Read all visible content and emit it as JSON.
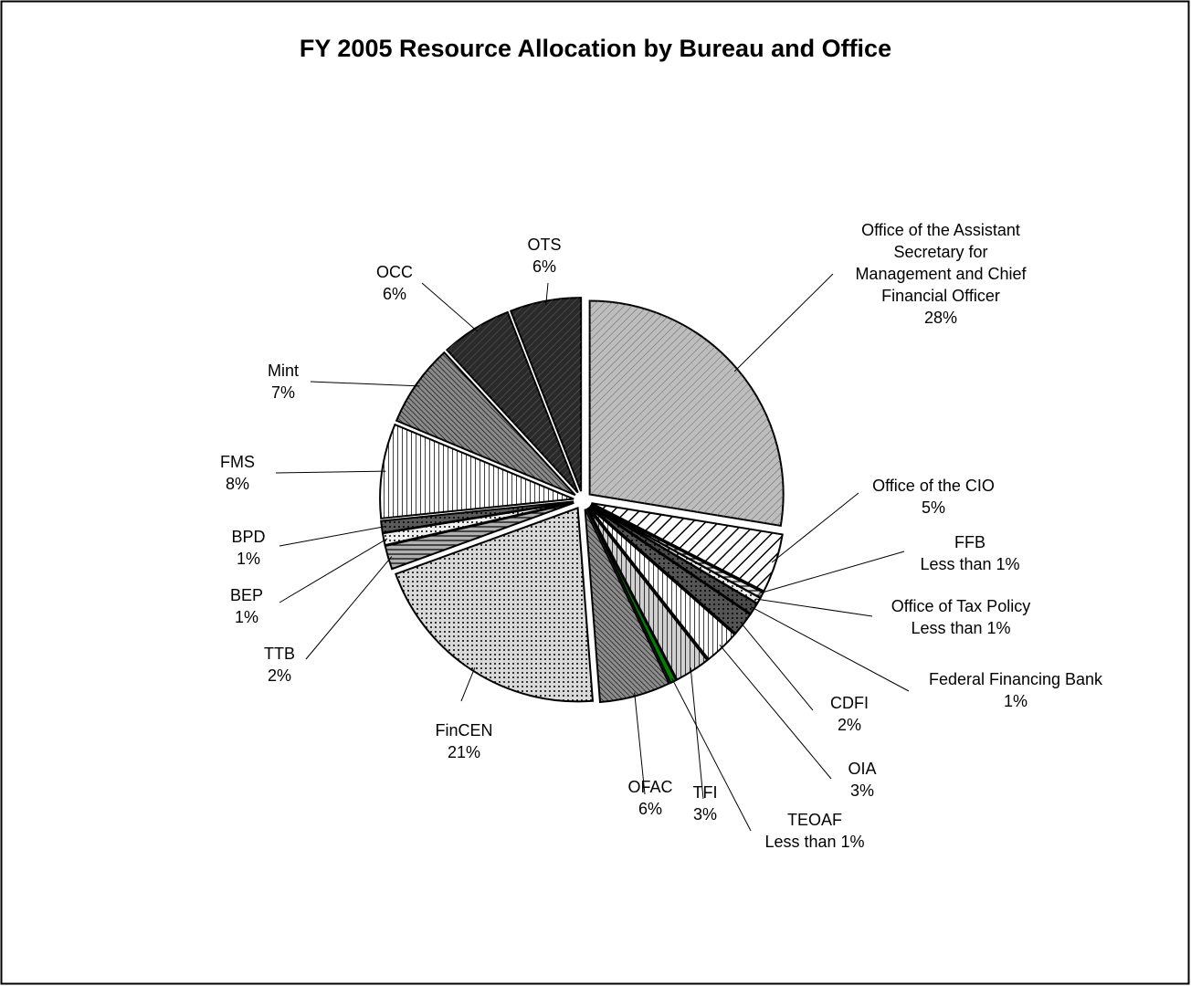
{
  "chart_data": {
    "type": "pie",
    "title": "FY 2005 Resource Allocation by Bureau and Office",
    "categories": [
      "Office of the Assistant Secretary for Management and Chief Financial Officer",
      "Office of the CIO",
      "FFB",
      "Office of Tax Policy",
      "Federal Financing Bank",
      "CDFI",
      "OIA",
      "TFI",
      "TEOAF",
      "OFAC",
      "FinCEN",
      "TTB",
      "BEP",
      "BPD",
      "FMS",
      "Mint",
      "OCC",
      "OTS"
    ],
    "values": [
      28,
      5,
      0.5,
      0.5,
      1,
      2,
      3,
      3,
      0.5,
      6,
      21,
      2,
      1,
      1,
      8,
      7,
      6,
      6
    ],
    "value_labels": [
      "28%",
      "5%",
      "Less than 1%",
      "Less than 1%",
      "1%",
      "2%",
      "3%",
      "3%",
      "Less than 1%",
      "6%",
      "21%",
      "2%",
      "1%",
      "1%",
      "8%",
      "7%",
      "6%",
      "6%"
    ],
    "colors": [
      "#bdbdbd",
      "#ffffff",
      "#e6e6e6",
      "#f2f2f2",
      "#4a4a4a",
      "#555555",
      "#ffffff",
      "#d0d0d0",
      "#008000",
      "#8c8c8c",
      "#d9d9d9",
      "#b0b0b0",
      "#f0f0f0",
      "#5a5a5a",
      "#ffffff",
      "#8a8a8a",
      "#2a2a2a",
      "#2a2a2a"
    ]
  }
}
